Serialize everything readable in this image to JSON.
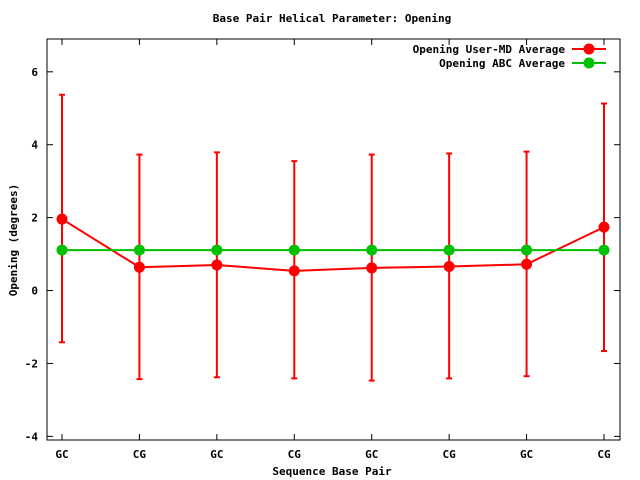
{
  "chart_data": {
    "type": "line",
    "title": "Base Pair Helical Parameter: Opening",
    "xlabel": "Sequence Base Pair",
    "ylabel": "Opening (degrees)",
    "categories": [
      "GC",
      "CG",
      "GC",
      "CG",
      "GC",
      "CG",
      "GC",
      "CG"
    ],
    "yticks": [
      6,
      4,
      2,
      0,
      -2,
      -4
    ],
    "ylim": [
      -4.1,
      6.9
    ],
    "grid": false,
    "legend_position": "top-right",
    "series": [
      {
        "name": "Opening User-MD Average",
        "color": "#ff0000",
        "values": [
          1.96,
          0.64,
          0.7,
          0.54,
          0.62,
          0.66,
          0.72,
          1.74
        ],
        "error_low": [
          -1.42,
          -2.43,
          -2.38,
          -2.41,
          -2.47,
          -2.41,
          -2.35,
          -1.66
        ],
        "error_high": [
          5.37,
          3.73,
          3.79,
          3.55,
          3.73,
          3.76,
          3.81,
          5.13
        ]
      },
      {
        "name": "Opening ABC Average",
        "color": "#00c000",
        "values": [
          1.11,
          1.11,
          1.11,
          1.11,
          1.11,
          1.11,
          1.11,
          1.11
        ]
      }
    ]
  }
}
